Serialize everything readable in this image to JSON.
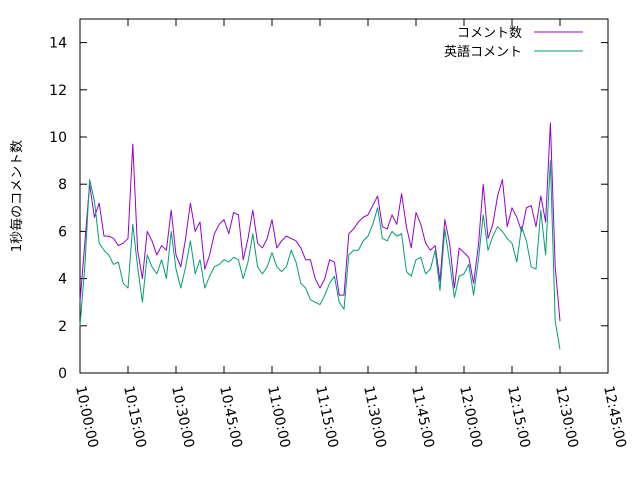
{
  "chart_data": {
    "type": "line",
    "ylabel": "1秒毎のコメント数",
    "xlabel": "",
    "title": "",
    "ylim": [
      0,
      15
    ],
    "yticks": [
      0,
      2,
      4,
      6,
      8,
      10,
      12,
      14
    ],
    "xlim_minutes": [
      0,
      165
    ],
    "xticks": [
      "10:00:00",
      "10:15:00",
      "10:30:00",
      "10:45:00",
      "11:00:00",
      "11:15:00",
      "11:30:00",
      "11:45:00",
      "12:00:00",
      "12:15:00",
      "12:30:00",
      "12:45:00"
    ],
    "legend_position": "top-right",
    "grid": false,
    "x_interval_minutes": 1.5,
    "series": [
      {
        "name": "コメント数",
        "color": "#9400d3",
        "values": [
          3.0,
          5.5,
          8.0,
          6.6,
          7.2,
          5.8,
          5.8,
          5.7,
          5.4,
          5.5,
          5.7,
          9.7,
          5.2,
          4.0,
          6.0,
          5.6,
          5.0,
          5.4,
          5.2,
          6.9,
          5.0,
          4.5,
          5.7,
          7.2,
          6.0,
          6.4,
          4.4,
          5.0,
          5.9,
          6.3,
          6.5,
          5.9,
          6.8,
          6.7,
          4.8,
          5.7,
          6.9,
          5.5,
          5.3,
          5.7,
          6.5,
          5.3,
          5.6,
          5.8,
          5.7,
          5.6,
          5.3,
          4.8,
          4.8,
          4.0,
          3.6,
          4.0,
          4.8,
          4.7,
          3.3,
          3.3,
          5.9,
          6.1,
          6.4,
          6.6,
          6.7,
          7.1,
          7.5,
          6.2,
          6.1,
          6.7,
          6.3,
          7.6,
          6.2,
          5.3,
          6.8,
          6.3,
          5.5,
          5.2,
          5.4,
          3.9,
          6.5,
          5.5,
          3.6,
          5.3,
          5.1,
          4.9,
          3.8,
          5.4,
          8.0,
          5.7,
          6.3,
          7.5,
          8.2,
          6.2,
          7.0,
          6.6,
          6.0,
          7.0,
          7.1,
          6.2,
          7.5,
          6.4,
          10.6,
          4.5,
          2.2
        ]
      },
      {
        "name": "英語コメント",
        "color": "#009e73",
        "values": [
          2.0,
          4.5,
          8.2,
          7.3,
          5.5,
          5.2,
          5.0,
          4.6,
          4.7,
          3.8,
          3.6,
          6.3,
          4.5,
          3.0,
          5.0,
          4.5,
          4.2,
          4.8,
          4.0,
          6.0,
          4.4,
          3.6,
          4.5,
          5.6,
          4.2,
          4.8,
          3.6,
          4.1,
          4.5,
          4.6,
          4.8,
          4.7,
          4.9,
          4.8,
          4.0,
          4.7,
          5.9,
          4.5,
          4.2,
          4.5,
          5.1,
          4.5,
          4.3,
          4.5,
          5.2,
          4.7,
          3.8,
          3.6,
          3.1,
          3.0,
          2.9,
          3.3,
          3.8,
          4.1,
          3.0,
          2.7,
          5.0,
          5.2,
          5.2,
          5.6,
          5.8,
          6.3,
          7.0,
          5.7,
          5.6,
          6.0,
          5.8,
          5.9,
          4.3,
          4.1,
          4.8,
          4.9,
          4.2,
          4.4,
          5.2,
          3.5,
          6.1,
          4.7,
          3.2,
          4.1,
          4.2,
          4.6,
          3.3,
          4.8,
          6.7,
          5.2,
          5.8,
          6.2,
          6.0,
          5.7,
          5.5,
          4.7,
          6.2,
          5.6,
          4.5,
          4.4,
          6.9,
          5.0,
          9.0,
          2.2,
          1.0
        ]
      }
    ]
  }
}
